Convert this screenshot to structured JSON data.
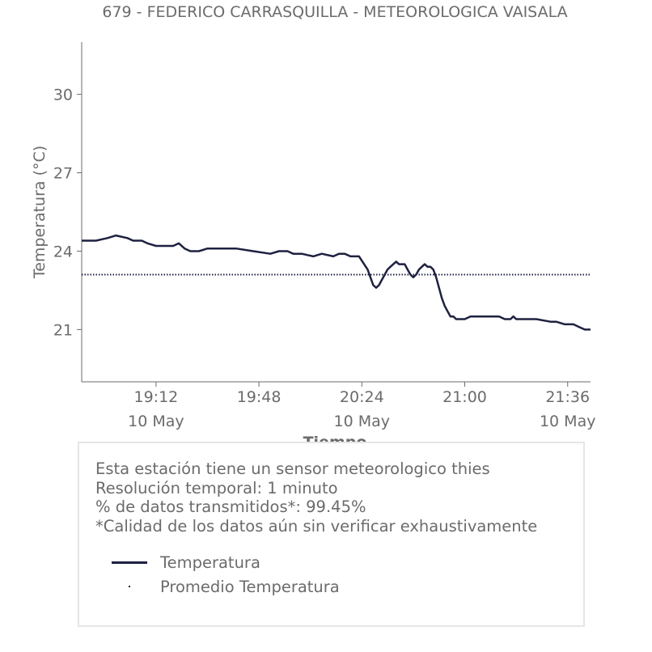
{
  "chart_data": {
    "type": "line",
    "title": "679 - FEDERICO CARRASQUILLA - METEOROLOGICA VAISALA",
    "xlabel": "Tiempo",
    "ylabel": "Temperatura (°C)",
    "ylim": [
      19.0,
      32.0
    ],
    "xlim": [
      "18:46",
      "21:44"
    ],
    "yticks": [
      21,
      24,
      27,
      30
    ],
    "xticks": [
      {
        "time": "19:12",
        "label": "19:12",
        "date": "10 May"
      },
      {
        "time": "19:48",
        "label": "19:48",
        "date": ""
      },
      {
        "time": "20:24",
        "label": "20:24",
        "date": "10 May"
      },
      {
        "time": "21:00",
        "label": "21:00",
        "date": ""
      },
      {
        "time": "21:36",
        "label": "21:36",
        "date": "10 May"
      }
    ],
    "grid": false,
    "series": [
      {
        "name": "Temperatura",
        "style": "solid",
        "color": "#1e2140",
        "x": [
          "18:46",
          "18:51",
          "18:55",
          "18:58",
          "19:02",
          "19:04",
          "19:07",
          "19:09",
          "19:12",
          "19:15",
          "19:18",
          "19:20",
          "19:22",
          "19:24",
          "19:27",
          "19:30",
          "19:34",
          "19:40",
          "19:46",
          "19:52",
          "19:55",
          "19:58",
          "20:00",
          "20:03",
          "20:07",
          "20:10",
          "20:14",
          "20:16",
          "20:18",
          "20:20",
          "20:23",
          "20:26",
          "20:27",
          "20:28",
          "20:29",
          "20:30",
          "20:31",
          "20:32",
          "20:33",
          "20:34",
          "20:35",
          "20:36",
          "20:37",
          "20:38",
          "20:39",
          "20:40",
          "20:41",
          "20:42",
          "20:43",
          "20:44",
          "20:45",
          "20:46",
          "20:47",
          "20:48",
          "20:49",
          "20:50",
          "20:51",
          "20:52",
          "20:53",
          "20:54",
          "20:55",
          "20:56",
          "20:57",
          "20:58",
          "20:59",
          "21:00",
          "21:02",
          "21:05",
          "21:09",
          "21:12",
          "21:14",
          "21:16",
          "21:17",
          "21:18",
          "21:19",
          "21:20",
          "21:25",
          "21:30",
          "21:32",
          "21:35",
          "21:38",
          "21:40",
          "21:42",
          "21:44"
        ],
        "y": [
          24.4,
          24.4,
          24.5,
          24.6,
          24.5,
          24.4,
          24.4,
          24.3,
          24.2,
          24.2,
          24.2,
          24.3,
          24.1,
          24.0,
          24.0,
          24.1,
          24.1,
          24.1,
          24.0,
          23.9,
          24.0,
          24.0,
          23.9,
          23.9,
          23.8,
          23.9,
          23.8,
          23.9,
          23.9,
          23.8,
          23.8,
          23.3,
          23.0,
          22.7,
          22.6,
          22.7,
          22.9,
          23.1,
          23.3,
          23.4,
          23.5,
          23.6,
          23.5,
          23.5,
          23.5,
          23.3,
          23.1,
          23.0,
          23.1,
          23.3,
          23.4,
          23.5,
          23.4,
          23.4,
          23.3,
          23.0,
          22.6,
          22.2,
          21.9,
          21.7,
          21.5,
          21.5,
          21.4,
          21.4,
          21.4,
          21.4,
          21.5,
          21.5,
          21.5,
          21.5,
          21.4,
          21.4,
          21.5,
          21.4,
          21.4,
          21.4,
          21.4,
          21.3,
          21.3,
          21.2,
          21.2,
          21.1,
          21.0,
          21.0
        ]
      },
      {
        "name": "Promedio Temperatura",
        "style": "dotted",
        "color": "#1e2140",
        "x": [
          "18:46",
          "21:44"
        ],
        "y": [
          23.1,
          23.1
        ]
      }
    ]
  },
  "info": {
    "line1": "Esta estación tiene un sensor meteorologico thies",
    "line2": "Resolución temporal: 1 minuto",
    "line3": "% de datos transmitidos*: 99.45%",
    "line4": "*Calidad de los datos aún sin verificar exhaustivamente"
  },
  "legend": {
    "series_0": "Temperatura",
    "series_1": "Promedio Temperatura"
  }
}
